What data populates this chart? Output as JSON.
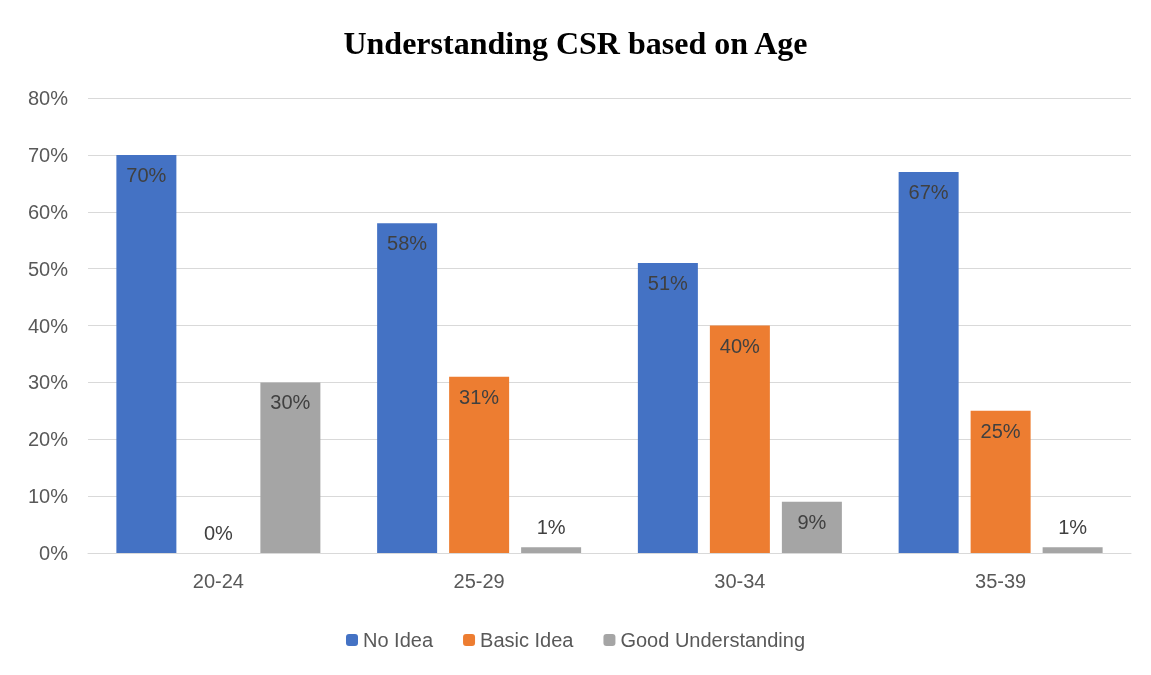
{
  "chart_data": {
    "type": "bar",
    "title": "Understanding CSR based on Age",
    "categories": [
      "20-24",
      "25-29",
      "30-34",
      "35-39"
    ],
    "series": [
      {
        "name": "No Idea",
        "color": "#4472c4",
        "values": [
          70,
          58,
          51,
          67
        ],
        "value_labels": [
          "70%",
          "58%",
          "51%",
          "67%"
        ]
      },
      {
        "name": "Basic Idea",
        "color": "#ed7d31",
        "values": [
          0,
          31,
          40,
          25
        ],
        "value_labels": [
          "0%",
          "31%",
          "40%",
          "25%"
        ]
      },
      {
        "name": "Good Understanding",
        "color": "#a5a5a5",
        "values": [
          30,
          1,
          9,
          1
        ],
        "value_labels": [
          "30%",
          "1%",
          "9%",
          "1%"
        ]
      }
    ],
    "ylim": [
      0,
      80
    ],
    "yticks": [
      {
        "value": 0,
        "label": "0%"
      },
      {
        "value": 10,
        "label": "10%"
      },
      {
        "value": 20,
        "label": "20%"
      },
      {
        "value": 30,
        "label": "30%"
      },
      {
        "value": 40,
        "label": "40%"
      },
      {
        "value": 50,
        "label": "50%"
      },
      {
        "value": 60,
        "label": "60%"
      },
      {
        "value": 70,
        "label": "70%"
      },
      {
        "value": 80,
        "label": "80%"
      }
    ],
    "grid": "y",
    "legend": "bottom"
  }
}
